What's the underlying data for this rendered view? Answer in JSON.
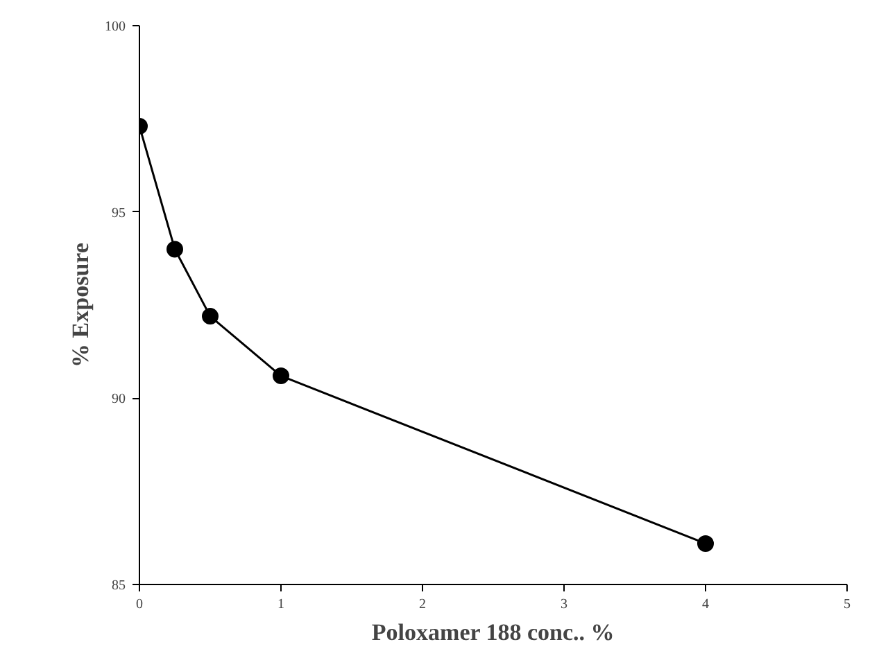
{
  "chart_data": {
    "type": "line",
    "xlabel": "Poloxamer 188 conc.. %",
    "ylabel": "% Exposure",
    "x": [
      0,
      0.25,
      0.5,
      1,
      4
    ],
    "series": [
      {
        "color": "#000000",
        "values": [
          97.3,
          94.0,
          92.2,
          90.6,
          86.1
        ]
      }
    ],
    "xlim": [
      0,
      5
    ],
    "xticks": [
      0,
      1,
      2,
      3,
      4,
      5
    ],
    "ylim": [
      85,
      100
    ],
    "yticks": [
      85,
      90,
      95,
      100
    ],
    "grid": false,
    "marker": "circle",
    "line_style": "solid"
  }
}
